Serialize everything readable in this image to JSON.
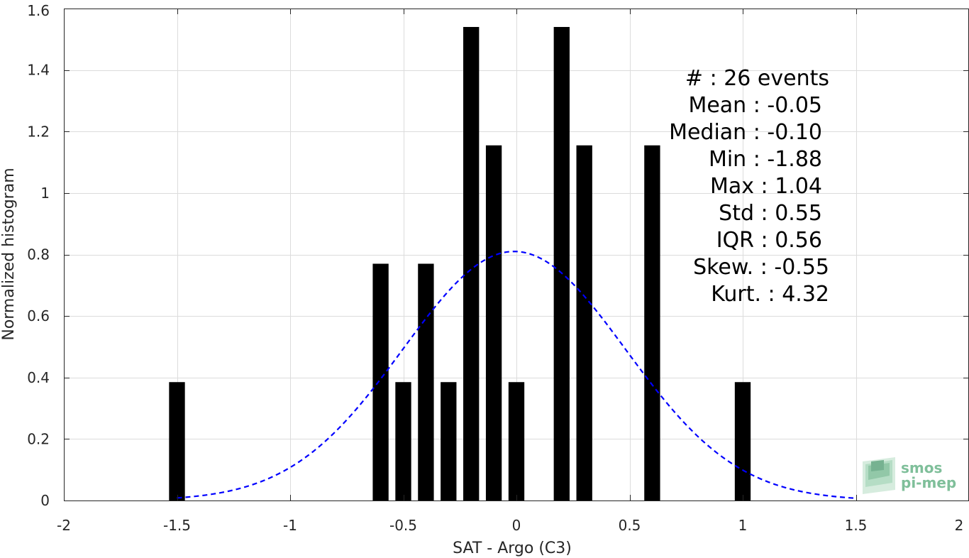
{
  "chart_data": {
    "type": "bar",
    "title": "",
    "xlabel": "SAT - Argo (C3)",
    "ylabel": "Normalized histogram",
    "xlim": [
      -2,
      2
    ],
    "ylim": [
      0,
      1.6
    ],
    "grid": true,
    "xticks": [
      -2,
      -1.5,
      -1,
      -0.5,
      0,
      0.5,
      1,
      1.5,
      2
    ],
    "xtick_labels": [
      "-2",
      "-1.5",
      "-1",
      "-0.5",
      "0",
      "0.5",
      "1",
      "1.5",
      "2"
    ],
    "yticks": [
      0,
      0.2,
      0.4,
      0.6,
      0.8,
      1,
      1.2,
      1.4,
      1.6
    ],
    "ytick_labels": [
      "0",
      "0.2",
      "0.4",
      "0.6",
      "0.8",
      "1",
      "1.2",
      "1.4",
      "1.6"
    ],
    "bar_width": 0.07,
    "bar_color": "#000000",
    "bars": [
      {
        "x": -1.5,
        "value": 0.385
      },
      {
        "x": -0.6,
        "value": 0.77
      },
      {
        "x": -0.5,
        "value": 0.385
      },
      {
        "x": -0.4,
        "value": 0.77
      },
      {
        "x": -0.3,
        "value": 0.385
      },
      {
        "x": -0.2,
        "value": 1.54
      },
      {
        "x": -0.1,
        "value": 1.155
      },
      {
        "x": 0.0,
        "value": 0.385
      },
      {
        "x": 0.2,
        "value": 1.54
      },
      {
        "x": 0.3,
        "value": 1.155
      },
      {
        "x": 0.6,
        "value": 1.155
      },
      {
        "x": 1.0,
        "value": 0.385
      }
    ],
    "fit_curve": {
      "style": "dashed",
      "color": "#0000ff",
      "mean": -0.01,
      "peak": 0.81,
      "x_range": [
        -1.5,
        1.5
      ]
    },
    "stats_lines": [
      "#  : 26 events",
      "Mean : -0.05",
      "Median : -0.10",
      "Min : -1.88",
      "Max : 1.04",
      "Std : 0.55",
      "IQR : 0.56",
      "Skew. : -0.55",
      "Kurt. : 4.32"
    ]
  },
  "logo": {
    "line1": "smos",
    "line2": "pi-mep",
    "color": "#7fbf9a"
  }
}
